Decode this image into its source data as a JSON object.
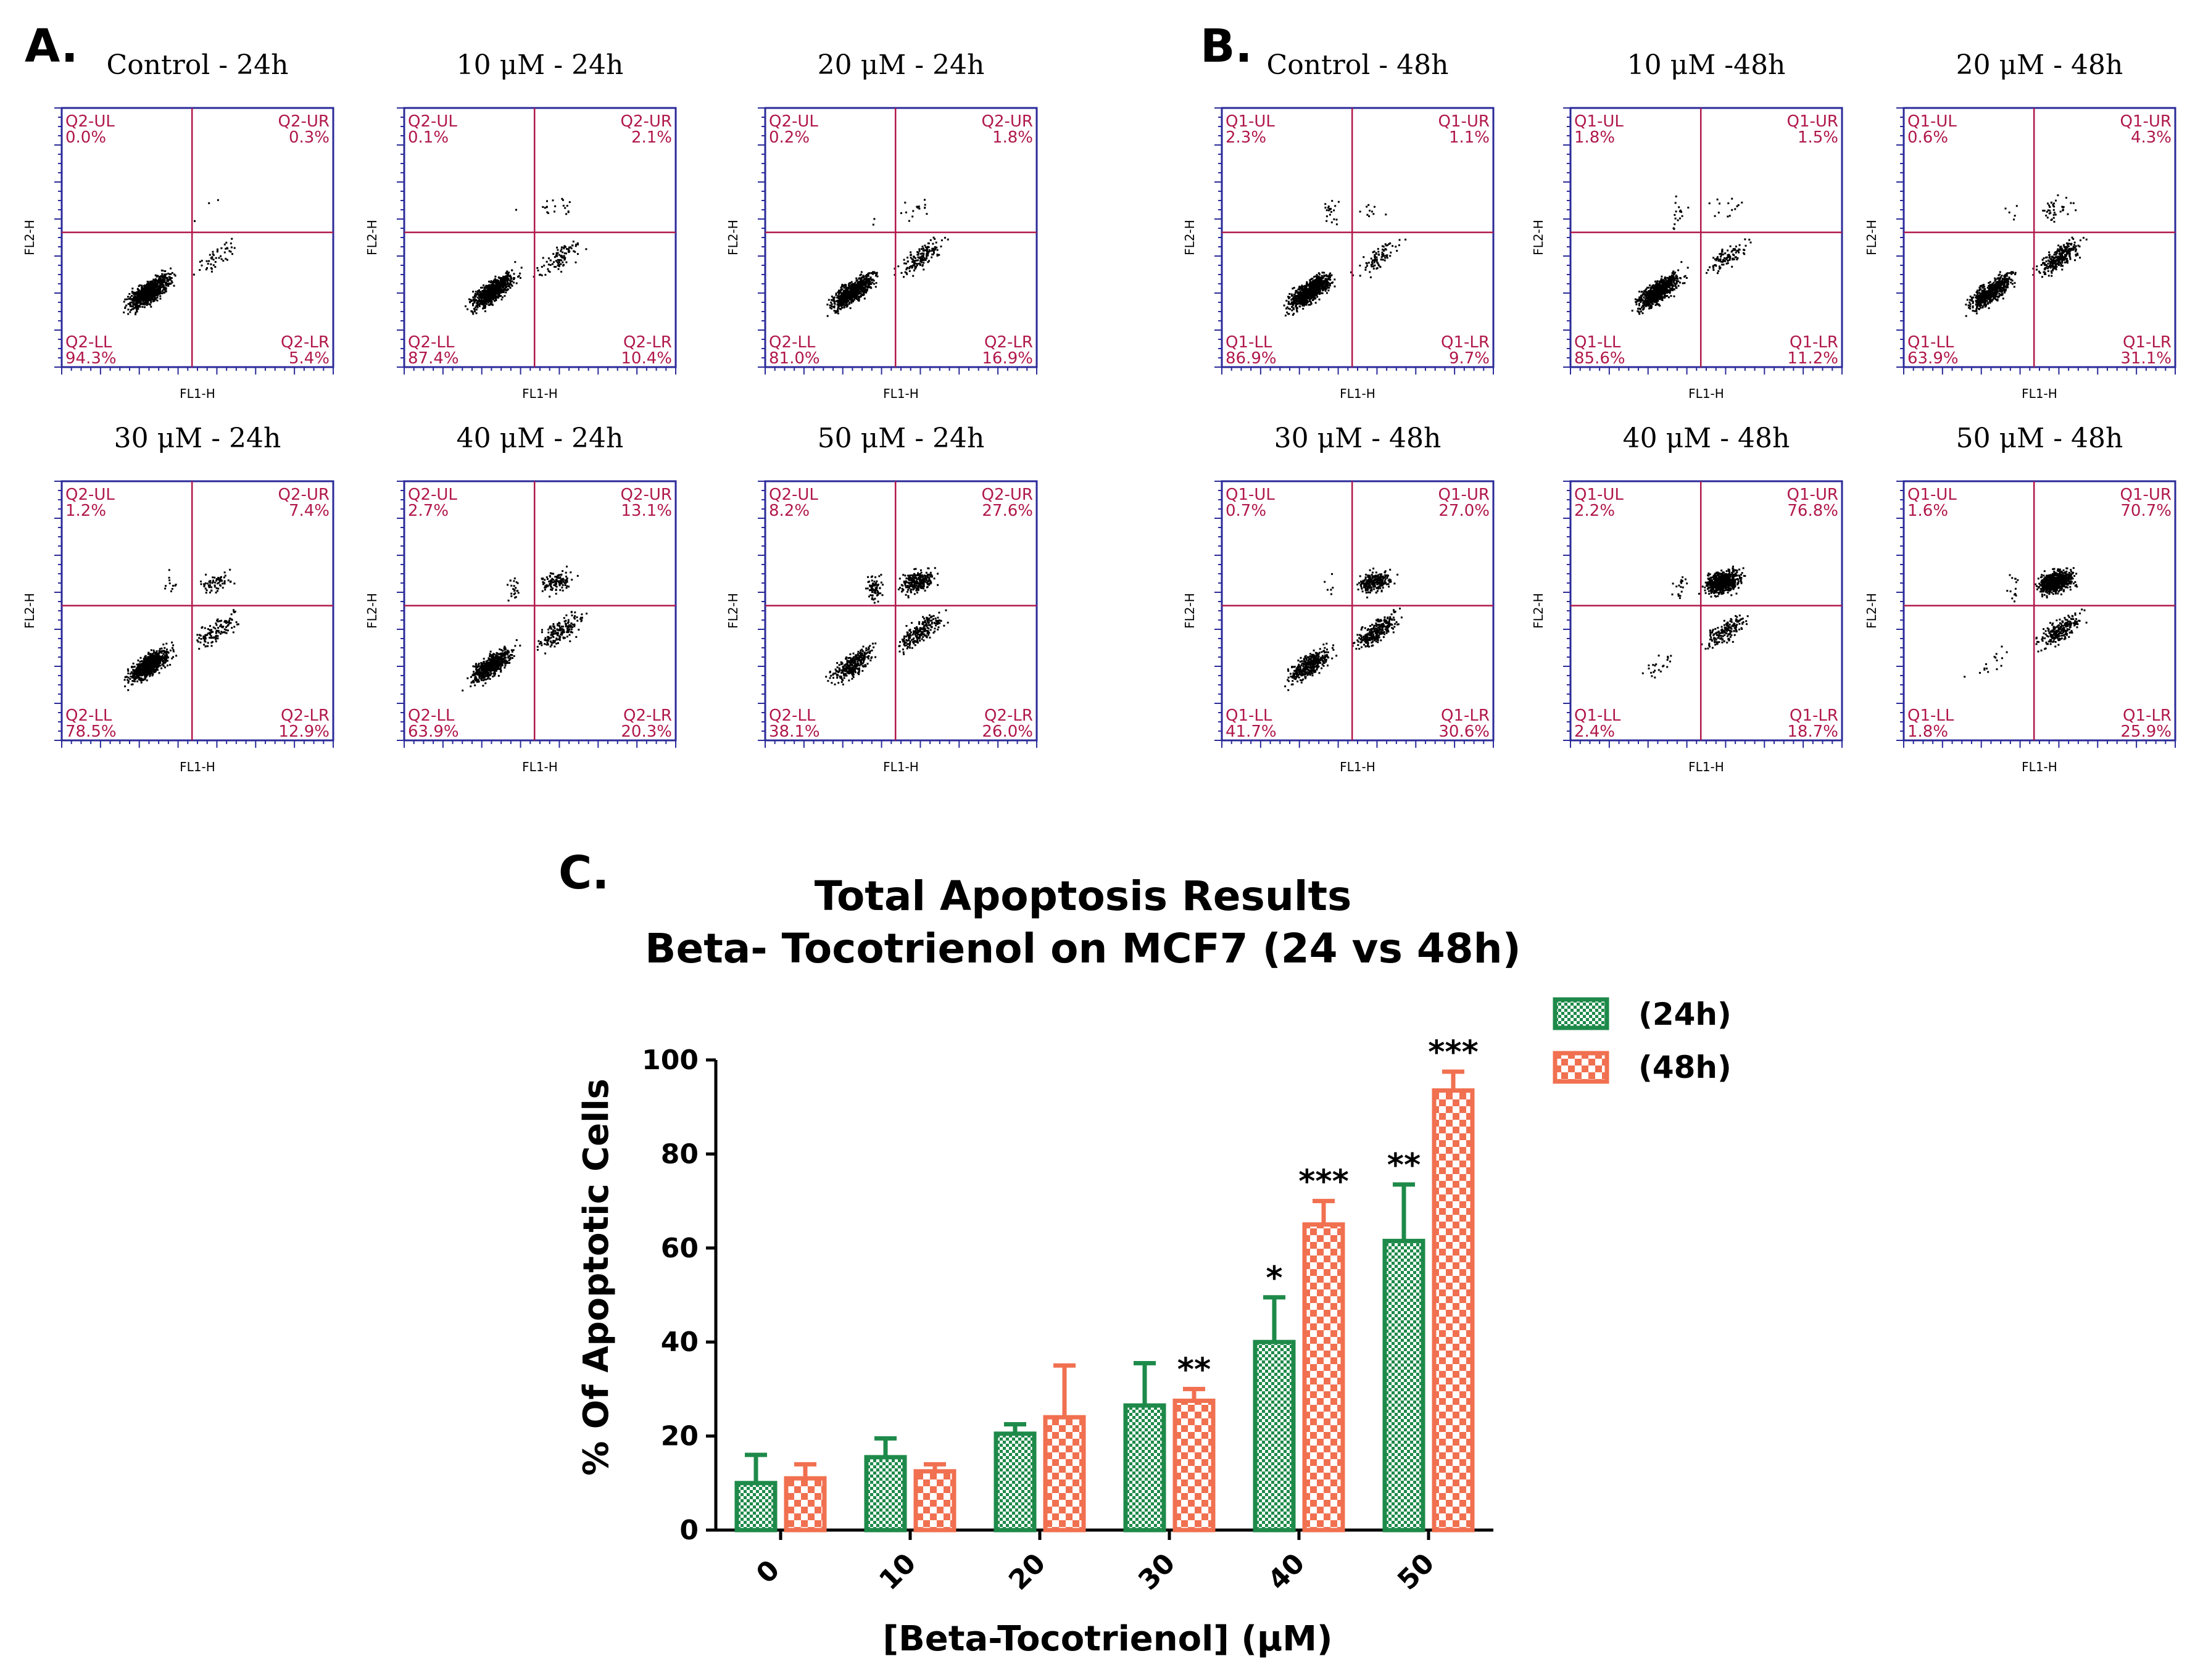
{
  "panels": {
    "A": {
      "letter": "A."
    },
    "B": {
      "letter": "B."
    },
    "C": {
      "letter": "C."
    }
  },
  "flow_plots": [
    {
      "title": "Control - 24h",
      "quads": {
        "ul": "Q2-UL",
        "ur": "Q2-UR",
        "ll": "Q2-LL",
        "lr": "Q2-LR"
      },
      "values": {
        "ul": "0.0%",
        "ur": "0.3%",
        "ll": "94.3%",
        "lr": "5.4%"
      },
      "xlabel": "FL1-H",
      "ylabel": "FL2-H"
    },
    {
      "title": "10 μM - 24h",
      "quads": {
        "ul": "Q2-UL",
        "ur": "Q2-UR",
        "ll": "Q2-LL",
        "lr": "Q2-LR"
      },
      "values": {
        "ul": "0.1%",
        "ur": "2.1%",
        "ll": "87.4%",
        "lr": "10.4%"
      },
      "xlabel": "FL1-H",
      "ylabel": "FL2-H"
    },
    {
      "title": "20 μM - 24h",
      "quads": {
        "ul": "Q2-UL",
        "ur": "Q2-UR",
        "ll": "Q2-LL",
        "lr": "Q2-LR"
      },
      "values": {
        "ul": "0.2%",
        "ur": "1.8%",
        "ll": "81.0%",
        "lr": "16.9%"
      },
      "xlabel": "FL1-H",
      "ylabel": "FL2-H"
    },
    {
      "title": "30 μM - 24h",
      "quads": {
        "ul": "Q2-UL",
        "ur": "Q2-UR",
        "ll": "Q2-LL",
        "lr": "Q2-LR"
      },
      "values": {
        "ul": "1.2%",
        "ur": "7.4%",
        "ll": "78.5%",
        "lr": "12.9%"
      },
      "xlabel": "FL1-H",
      "ylabel": "FL2-H"
    },
    {
      "title": "40 μM - 24h",
      "quads": {
        "ul": "Q2-UL",
        "ur": "Q2-UR",
        "ll": "Q2-LL",
        "lr": "Q2-LR"
      },
      "values": {
        "ul": "2.7%",
        "ur": "13.1%",
        "ll": "63.9%",
        "lr": "20.3%"
      },
      "xlabel": "FL1-H",
      "ylabel": "FL2-H"
    },
    {
      "title": "50 μM - 24h",
      "quads": {
        "ul": "Q2-UL",
        "ur": "Q2-UR",
        "ll": "Q2-LL",
        "lr": "Q2-LR"
      },
      "values": {
        "ul": "8.2%",
        "ur": "27.6%",
        "ll": "38.1%",
        "lr": "26.0%"
      },
      "xlabel": "FL1-H",
      "ylabel": "FL2-H"
    },
    {
      "title": "Control - 48h",
      "quads": {
        "ul": "Q1-UL",
        "ur": "Q1-UR",
        "ll": "Q1-LL",
        "lr": "Q1-LR"
      },
      "values": {
        "ul": "2.3%",
        "ur": "1.1%",
        "ll": "86.9%",
        "lr": "9.7%"
      },
      "xlabel": "FL1-H",
      "ylabel": "FL2-H"
    },
    {
      "title": "10 μM -48h",
      "quads": {
        "ul": "Q1-UL",
        "ur": "Q1-UR",
        "ll": "Q1-LL",
        "lr": "Q1-LR"
      },
      "values": {
        "ul": "1.8%",
        "ur": "1.5%",
        "ll": "85.6%",
        "lr": "11.2%"
      },
      "xlabel": "FL1-H",
      "ylabel": "FL2-H"
    },
    {
      "title": "20 μM - 48h",
      "quads": {
        "ul": "Q1-UL",
        "ur": "Q1-UR",
        "ll": "Q1-LL",
        "lr": "Q1-LR"
      },
      "values": {
        "ul": "0.6%",
        "ur": "4.3%",
        "ll": "63.9%",
        "lr": "31.1%"
      },
      "xlabel": "FL1-H",
      "ylabel": "FL2-H"
    },
    {
      "title": "30 μM - 48h",
      "quads": {
        "ul": "Q1-UL",
        "ur": "Q1-UR",
        "ll": "Q1-LL",
        "lr": "Q1-LR"
      },
      "values": {
        "ul": "0.7%",
        "ur": "27.0%",
        "ll": "41.7%",
        "lr": "30.6%"
      },
      "xlabel": "FL1-H",
      "ylabel": "FL2-H"
    },
    {
      "title": "40 μM - 48h",
      "quads": {
        "ul": "Q1-UL",
        "ur": "Q1-UR",
        "ll": "Q1-LL",
        "lr": "Q1-LR"
      },
      "values": {
        "ul": "2.2%",
        "ur": "76.8%",
        "ll": "2.4%",
        "lr": "18.7%"
      },
      "xlabel": "FL1-H",
      "ylabel": "FL2-H"
    },
    {
      "title": "50 μM - 48h",
      "quads": {
        "ul": "Q1-UL",
        "ur": "Q1-UR",
        "ll": "Q1-LL",
        "lr": "Q1-LR"
      },
      "values": {
        "ul": "1.6%",
        "ur": "70.7%",
        "ll": "1.8%",
        "lr": "25.9%"
      },
      "xlabel": "FL1-H",
      "ylabel": "FL2-H"
    }
  ],
  "chart_data": {
    "type": "bar",
    "title_line1": "Total Apoptosis Results",
    "title_line2": "Beta- Tocotrienol on MCF7 (24 vs 48h)",
    "xlabel": "[Beta-Tocotrienol] (μM)",
    "ylabel": "% Of  Apoptotic Cells",
    "ylim": [
      0,
      100
    ],
    "yticks": [
      0,
      20,
      40,
      60,
      80,
      100
    ],
    "categories": [
      "0",
      "10",
      "20",
      "30",
      "40",
      "50"
    ],
    "series": [
      {
        "name": "(24h)",
        "color": "#1e8a4a",
        "values": [
          10,
          15.5,
          20.5,
          26.5,
          40,
          61.5
        ],
        "errors": [
          6,
          4,
          2,
          9,
          9.5,
          12
        ],
        "significance": [
          "",
          "",
          "",
          "",
          "*",
          "**"
        ]
      },
      {
        "name": "(48h)",
        "color": "#f07050",
        "values": [
          11,
          12.5,
          24,
          27.5,
          65,
          93.5
        ],
        "errors": [
          3,
          1.5,
          11,
          2.5,
          5,
          4
        ],
        "significance": [
          "",
          "",
          "",
          "**",
          "***",
          "***"
        ]
      }
    ]
  }
}
